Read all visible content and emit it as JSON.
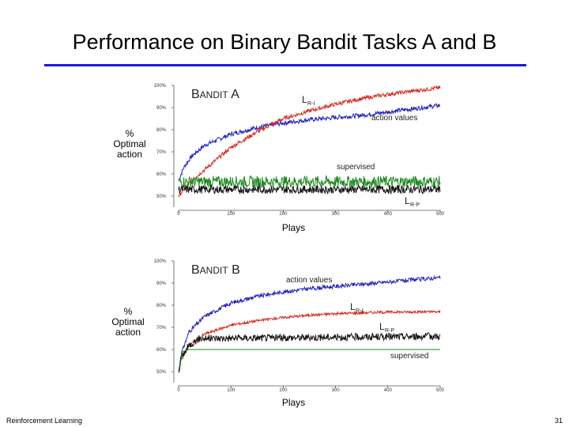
{
  "slide": {
    "title": "Performance on Binary Bandit Tasks A and B",
    "footer_left": "Reinforcement Learning",
    "page_number": "31"
  },
  "colors": {
    "rule": "#1a1ad6",
    "action_values": "#1f1fb4",
    "lrp": "#d42a1e",
    "supervised": "#1e8a1e",
    "lrp_penalty": "#111111"
  },
  "chart_data": [
    {
      "type": "line",
      "panel_label": "Bandit A",
      "ylabel": [
        "%",
        "Optimal",
        "action"
      ],
      "xlabel": "Plays",
      "xlim": [
        0,
        500
      ],
      "ylim": [
        45,
        100
      ],
      "xticks": [
        "0",
        "100",
        "200",
        "300",
        "400",
        "500"
      ],
      "yticks": [
        "50%",
        "60%",
        "70%",
        "80%",
        "90%",
        "100%"
      ],
      "series": [
        {
          "name": "action values",
          "color": "#1f1fb4",
          "x": [
            0,
            10,
            25,
            50,
            100,
            150,
            200,
            250,
            300,
            350,
            400,
            450,
            500
          ],
          "y": [
            57,
            63,
            68,
            73,
            78,
            81,
            83,
            84.5,
            85.5,
            86.5,
            88,
            89.5,
            91
          ],
          "noise": 1.0
        },
        {
          "name": "LR-I",
          "color": "#d42a1e",
          "x": [
            0,
            10,
            25,
            50,
            100,
            150,
            200,
            250,
            300,
            350,
            400,
            450,
            500
          ],
          "y": [
            50,
            53,
            57,
            62,
            72,
            79,
            85,
            88.5,
            91.5,
            94,
            96,
            97.5,
            99
          ],
          "noise": 0.9
        },
        {
          "name": "supervised",
          "color": "#1e8a1e",
          "x": [
            0,
            500
          ],
          "y": [
            56.5,
            56.5
          ],
          "noise": 2.6
        },
        {
          "name": "LR-P",
          "color": "#111111",
          "x": [
            0,
            500
          ],
          "y": [
            53,
            53
          ],
          "noise": 1.8
        }
      ],
      "annotations": [
        "action values",
        "supervised"
      ],
      "sub_labels": {
        "lri_main": "L",
        "lri_sub": "R-I",
        "lrp_main": "L",
        "lrp_sub": "R-P"
      }
    },
    {
      "type": "line",
      "panel_label": "Bandit B",
      "ylabel": [
        "%",
        "Optimal",
        "action"
      ],
      "xlabel": "Plays",
      "xlim": [
        0,
        500
      ],
      "ylim": [
        45,
        100
      ],
      "xticks": [
        "0",
        "100",
        "200",
        "300",
        "400",
        "500"
      ],
      "yticks": [
        "50%",
        "60%",
        "70%",
        "80%",
        "90%",
        "100%"
      ],
      "series": [
        {
          "name": "action values",
          "color": "#1f1fb4",
          "x": [
            0,
            5,
            20,
            50,
            100,
            150,
            200,
            250,
            300,
            350,
            400,
            450,
            500
          ],
          "y": [
            50,
            58,
            68,
            75,
            81,
            84,
            86,
            87.5,
            88.5,
            89.5,
            90.5,
            91.5,
            92.5
          ],
          "noise": 0.9
        },
        {
          "name": "LR-I",
          "color": "#d42a1e",
          "x": [
            0,
            5,
            20,
            50,
            100,
            150,
            200,
            250,
            300,
            350,
            400,
            450,
            500
          ],
          "y": [
            50,
            55,
            62,
            67,
            71,
            73,
            74.5,
            75.5,
            76.2,
            76.6,
            76.9,
            77,
            77
          ],
          "noise": 0.6
        },
        {
          "name": "LR-P",
          "color": "#111111",
          "x": [
            0,
            5,
            20,
            40,
            500
          ],
          "y": [
            50,
            56,
            62,
            65,
            66
          ],
          "noise": 1.6
        },
        {
          "name": "supervised",
          "color": "#1e8a1e",
          "x": [
            0,
            8,
            20,
            500
          ],
          "y": [
            50,
            59,
            60,
            60
          ],
          "noise": 0
        }
      ],
      "annotations": [
        "action values",
        "supervised"
      ],
      "sub_labels": {
        "lri_main": "L",
        "lri_sub": "R-I",
        "lrp_main": "L",
        "lrp_sub": "R-P"
      }
    }
  ]
}
